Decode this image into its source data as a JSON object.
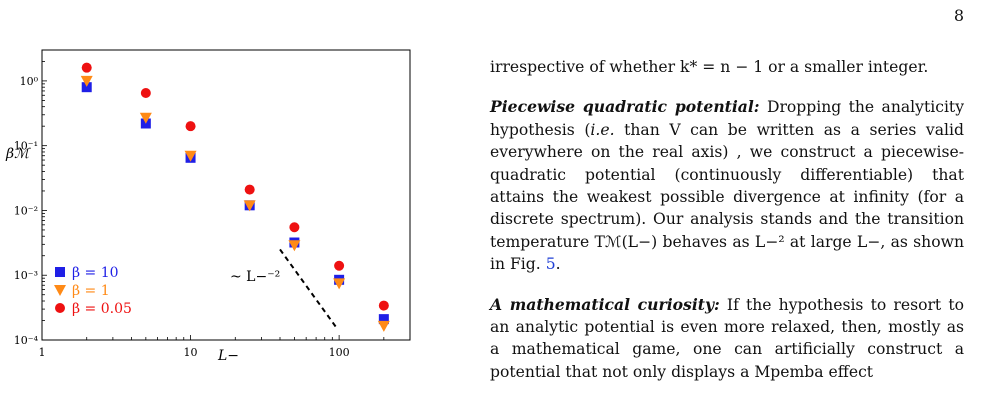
{
  "page_number": "8",
  "chart_data": {
    "type": "scatter",
    "xscale": "log",
    "yscale": "log",
    "xlim": [
      1,
      300
    ],
    "ylim": [
      0.0001,
      3
    ],
    "xlabel": "L−",
    "ylabel": "βℳ",
    "x_ticks": [
      "1",
      "10",
      "100"
    ],
    "y_ticks": [
      "10⁻⁴",
      "10⁻³",
      "10⁻²",
      "10⁻¹",
      "10⁰"
    ],
    "legend_position": "bottom-left",
    "annotation": "~ L−⁻²",
    "series": [
      {
        "name": "β = 10",
        "marker": "square",
        "color": "#1f1fe6",
        "x": [
          2,
          5,
          10,
          25,
          50,
          100,
          200
        ],
        "y": [
          0.8,
          0.22,
          0.065,
          0.012,
          0.0032,
          0.00085,
          0.00021
        ]
      },
      {
        "name": "β = 1",
        "marker": "triangle-down",
        "color": "#ff8a16",
        "x": [
          2,
          5,
          10,
          25,
          50,
          100,
          200
        ],
        "y": [
          1.0,
          0.27,
          0.07,
          0.012,
          0.0029,
          0.00075,
          0.000165
        ]
      },
      {
        "name": "β = 0.05",
        "marker": "circle",
        "color": "#ee1111",
        "x": [
          2,
          5,
          10,
          25,
          50,
          100,
          200
        ],
        "y": [
          1.6,
          0.65,
          0.2,
          0.021,
          0.0055,
          0.0014,
          0.00034
        ]
      }
    ],
    "guide_line": {
      "x": [
        40,
        95
      ],
      "y": [
        0.0025,
        0.00016
      ]
    }
  },
  "text": {
    "p1": "irrespective of whether k* = n − 1 or a smaller integer.",
    "p2_title": "Piecewise quadratic potential:",
    "p2_body_a": " Dropping the analyticity hypothesis (",
    "p2_ie": "i.e.",
    "p2_body_b": " than V can be written as a series valid everywhere on the real axis) , we construct a piecewise-quadratic potential (continuously differentiable) that attains the weakest possible divergence at infinity (for a discrete spectrum). Our analysis stands and the transition temperature Tℳ(L−) behaves as L−² at large L−, as shown in Fig. ",
    "p2_fig": "5",
    "p2_end": ".",
    "p3_title": "A mathematical curiosity:",
    "p3_body": " If the hypothesis to resort to an analytic potential is even more relaxed, then, mostly as a mathematical game, one can artificially construct a potential that not only displays a Mpemba effect"
  }
}
